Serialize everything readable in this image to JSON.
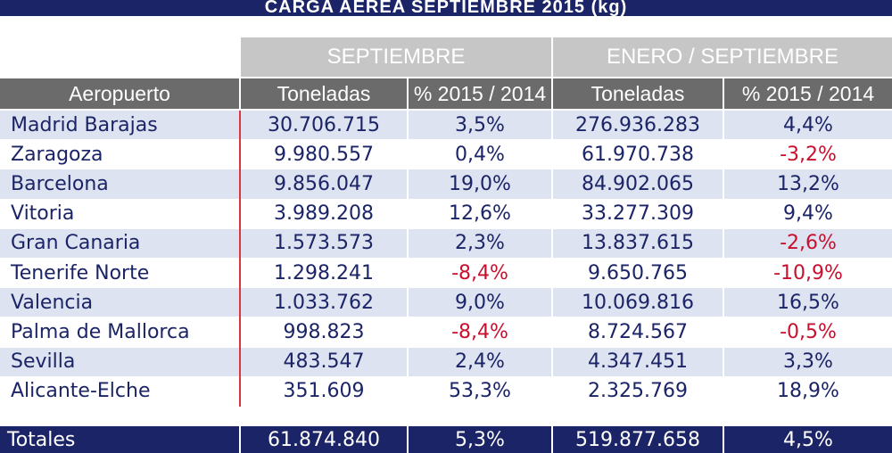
{
  "header": {
    "title": "CARGA AÉREA SEPTIEMBRE 2015 (kg)"
  },
  "table": {
    "groups": [
      "SEPTIEMBRE",
      "ENERO / SEPTIEMBRE"
    ],
    "columns": [
      "Aeropuerto",
      "Toneladas",
      "% 2015 / 2014",
      "Toneladas",
      "% 2015 / 2014"
    ],
    "rows": [
      [
        "Madrid Barajas",
        "30.706.715",
        "3,5%",
        "276.936.283",
        "4,4%"
      ],
      [
        "Zaragoza",
        "9.980.557",
        "0,4%",
        "61.970.738",
        "-3,2%"
      ],
      [
        "Barcelona",
        "9.856.047",
        "19,0%",
        "84.902.065",
        "13,2%"
      ],
      [
        "Vitoria",
        "3.989.208",
        "12,6%",
        "33.277.309",
        "9,4%"
      ],
      [
        "Gran Canaria",
        "1.573.573",
        "2,3%",
        "13.837.615",
        "-2,6%"
      ],
      [
        "Tenerife Norte",
        "1.298.241",
        "-8,4%",
        "9.650.765",
        "-10,9%"
      ],
      [
        "Valencia",
        "1.033.762",
        "9,0%",
        "10.069.816",
        "16,5%"
      ],
      [
        "Palma de Mallorca",
        "998.823",
        "-8,4%",
        "8.724.567",
        "-0,5%"
      ],
      [
        "Sevilla",
        "483.547",
        "2,4%",
        "4.347.451",
        "3,3%"
      ],
      [
        "Alicante-Elche",
        "351.609",
        "53,3%",
        "2.325.769",
        "18,9%"
      ]
    ],
    "totals": [
      "Totales",
      "61.874.840",
      "5,3%",
      "519.877.658",
      "4,5%"
    ]
  }
}
